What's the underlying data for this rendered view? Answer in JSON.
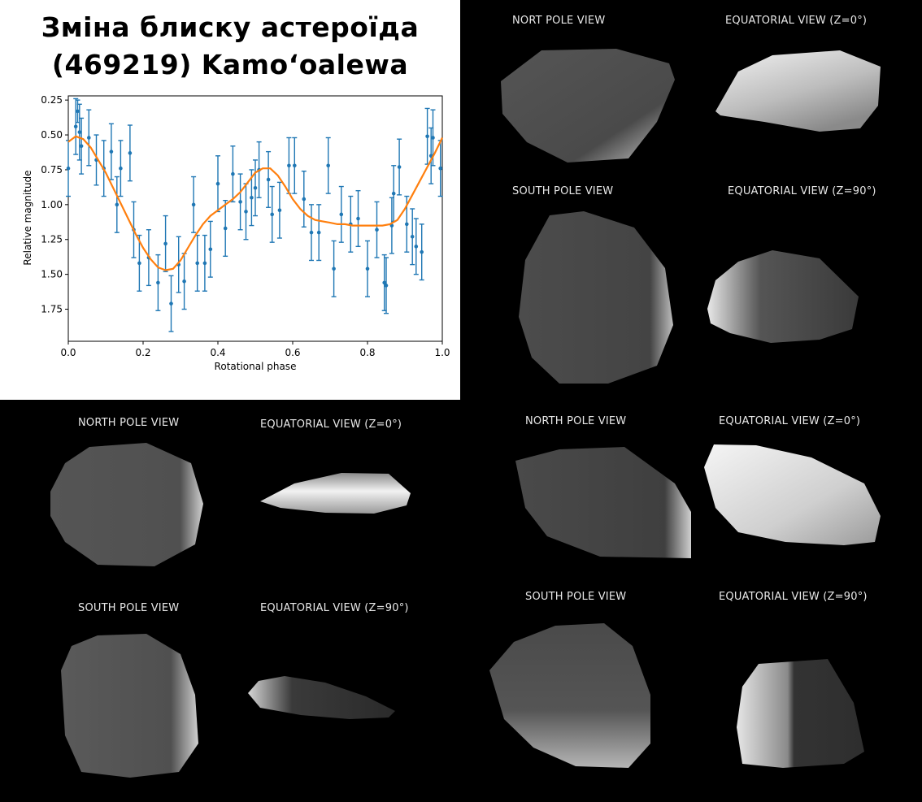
{
  "title_line1": "Зміна блиску астероїда",
  "title_line2": "(469219) Kamoʻoalewa",
  "chart_data": {
    "type": "scatter",
    "xlabel": "Rotational phase",
    "ylabel": "Relative magnitude",
    "xlim": [
      0.0,
      1.0
    ],
    "ylim": [
      1.98,
      0.22
    ],
    "y_inverted": true,
    "x_ticks": [
      "0.0",
      "0.2",
      "0.4",
      "0.6",
      "0.8",
      "1.0"
    ],
    "y_ticks": [
      "0.25",
      "0.50",
      "0.75",
      "1.00",
      "1.25",
      "1.50",
      "1.75"
    ],
    "points": [
      [
        0.0,
        0.74,
        0.2
      ],
      [
        0.02,
        0.44,
        0.2
      ],
      [
        0.025,
        0.33,
        0.08
      ],
      [
        0.03,
        0.48,
        0.2
      ],
      [
        0.035,
        0.58,
        0.2
      ],
      [
        0.055,
        0.52,
        0.2
      ],
      [
        0.075,
        0.68,
        0.18
      ],
      [
        0.095,
        0.74,
        0.2
      ],
      [
        0.115,
        0.62,
        0.2
      ],
      [
        0.13,
        1.0,
        0.2
      ],
      [
        0.14,
        0.74,
        0.2
      ],
      [
        0.165,
        0.63,
        0.2
      ],
      [
        0.175,
        1.18,
        0.2
      ],
      [
        0.19,
        1.42,
        0.2
      ],
      [
        0.215,
        1.38,
        0.2
      ],
      [
        0.24,
        1.56,
        0.2
      ],
      [
        0.26,
        1.28,
        0.2
      ],
      [
        0.275,
        1.71,
        0.2
      ],
      [
        0.295,
        1.43,
        0.2
      ],
      [
        0.31,
        1.55,
        0.2
      ],
      [
        0.335,
        1.0,
        0.2
      ],
      [
        0.345,
        1.42,
        0.2
      ],
      [
        0.365,
        1.42,
        0.2
      ],
      [
        0.38,
        1.32,
        0.2
      ],
      [
        0.4,
        0.85,
        0.2
      ],
      [
        0.42,
        1.17,
        0.2
      ],
      [
        0.44,
        0.78,
        0.2
      ],
      [
        0.46,
        0.98,
        0.2
      ],
      [
        0.475,
        1.05,
        0.2
      ],
      [
        0.49,
        0.95,
        0.2
      ],
      [
        0.5,
        0.88,
        0.2
      ],
      [
        0.51,
        0.75,
        0.2
      ],
      [
        0.535,
        0.82,
        0.2
      ],
      [
        0.545,
        1.07,
        0.2
      ],
      [
        0.565,
        1.04,
        0.2
      ],
      [
        0.59,
        0.72,
        0.2
      ],
      [
        0.605,
        0.72,
        0.2
      ],
      [
        0.63,
        0.96,
        0.2
      ],
      [
        0.65,
        1.2,
        0.2
      ],
      [
        0.67,
        1.2,
        0.2
      ],
      [
        0.695,
        0.72,
        0.2
      ],
      [
        0.71,
        1.46,
        0.2
      ],
      [
        0.73,
        1.07,
        0.2
      ],
      [
        0.755,
        1.14,
        0.2
      ],
      [
        0.775,
        1.1,
        0.2
      ],
      [
        0.8,
        1.46,
        0.2
      ],
      [
        0.825,
        1.18,
        0.2
      ],
      [
        0.845,
        1.56,
        0.2
      ],
      [
        0.85,
        1.58,
        0.2
      ],
      [
        0.865,
        1.15,
        0.2
      ],
      [
        0.87,
        0.92,
        0.2
      ],
      [
        0.885,
        0.73,
        0.2
      ],
      [
        0.905,
        1.14,
        0.2
      ],
      [
        0.92,
        1.23,
        0.2
      ],
      [
        0.93,
        1.3,
        0.2
      ],
      [
        0.945,
        1.34,
        0.2
      ],
      [
        0.96,
        0.51,
        0.2
      ],
      [
        0.97,
        0.65,
        0.2
      ],
      [
        0.975,
        0.52,
        0.2
      ],
      [
        0.995,
        0.74,
        0.2
      ]
    ],
    "fit_curve": [
      [
        0.0,
        0.55
      ],
      [
        0.02,
        0.51
      ],
      [
        0.04,
        0.53
      ],
      [
        0.06,
        0.59
      ],
      [
        0.08,
        0.68
      ],
      [
        0.1,
        0.77
      ],
      [
        0.12,
        0.88
      ],
      [
        0.14,
        0.99
      ],
      [
        0.16,
        1.1
      ],
      [
        0.18,
        1.21
      ],
      [
        0.2,
        1.31
      ],
      [
        0.22,
        1.39
      ],
      [
        0.24,
        1.45
      ],
      [
        0.26,
        1.47
      ],
      [
        0.28,
        1.46
      ],
      [
        0.3,
        1.4
      ],
      [
        0.32,
        1.31
      ],
      [
        0.34,
        1.22
      ],
      [
        0.36,
        1.14
      ],
      [
        0.38,
        1.08
      ],
      [
        0.4,
        1.04
      ],
      [
        0.42,
        1.0
      ],
      [
        0.44,
        0.96
      ],
      [
        0.46,
        0.91
      ],
      [
        0.48,
        0.84
      ],
      [
        0.5,
        0.77
      ],
      [
        0.52,
        0.74
      ],
      [
        0.54,
        0.74
      ],
      [
        0.56,
        0.79
      ],
      [
        0.58,
        0.87
      ],
      [
        0.6,
        0.96
      ],
      [
        0.62,
        1.03
      ],
      [
        0.64,
        1.08
      ],
      [
        0.66,
        1.11
      ],
      [
        0.68,
        1.12
      ],
      [
        0.7,
        1.13
      ],
      [
        0.72,
        1.14
      ],
      [
        0.74,
        1.14
      ],
      [
        0.76,
        1.15
      ],
      [
        0.78,
        1.15
      ],
      [
        0.8,
        1.15
      ],
      [
        0.82,
        1.15
      ],
      [
        0.84,
        1.15
      ],
      [
        0.86,
        1.14
      ],
      [
        0.88,
        1.11
      ],
      [
        0.9,
        1.03
      ],
      [
        0.92,
        0.93
      ],
      [
        0.94,
        0.83
      ],
      [
        0.96,
        0.73
      ],
      [
        0.98,
        0.63
      ],
      [
        1.0,
        0.52
      ]
    ],
    "colors": {
      "points": "#1f77b4",
      "fit": "#ff7f0e"
    }
  },
  "views": {
    "top_right": {
      "north": "NORT POLE VIEW",
      "eq0": "EQUATORIAL VIEW (Z=0°)",
      "south": "SOUTH POLE VIEW",
      "eq90": "EQUATORIAL VIEW (Z=90°)"
    },
    "bottom_left": {
      "north": "NORTH POLE VIEW",
      "eq0": "EQUATORIAL VIEW (Z=0°)",
      "south": "SOUTH POLE VIEW",
      "eq90": "EQUATORIAL VIEW (Z=90°)"
    },
    "bottom_right": {
      "north": "NORTH POLE VIEW",
      "eq0": "EQUATORIAL VIEW (Z=0°)",
      "south": "SOUTH POLE VIEW",
      "eq90": "EQUATORIAL VIEW (Z=90°)"
    }
  }
}
